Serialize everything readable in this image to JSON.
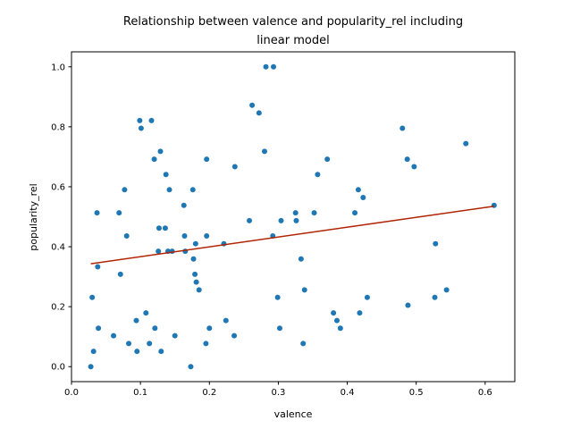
{
  "chart_data": {
    "type": "scatter",
    "title_lines": [
      "Relationship between valence and popularity_rel including",
      "linear model"
    ],
    "xlabel": "valence",
    "ylabel": "popularity_rel",
    "xlim": [
      0.0,
      0.643
    ],
    "ylim": [
      -0.05,
      1.05
    ],
    "xticks": [
      0.0,
      0.1,
      0.2,
      0.3,
      0.4,
      0.5,
      0.6
    ],
    "xtick_labels": [
      "0.0",
      "0.1",
      "0.2",
      "0.3",
      "0.4",
      "0.5",
      "0.6"
    ],
    "yticks": [
      0.0,
      0.2,
      0.4,
      0.6,
      0.8,
      1.0
    ],
    "ytick_labels": [
      "0.0",
      "0.2",
      "0.4",
      "0.6",
      "0.8",
      "1.0"
    ],
    "grid": false,
    "point_color": "#1f77b4",
    "line_color": "#b22400",
    "points": [
      {
        "x": 0.028,
        "y": 0.0
      },
      {
        "x": 0.03,
        "y": 0.231
      },
      {
        "x": 0.032,
        "y": 0.051
      },
      {
        "x": 0.037,
        "y": 0.513
      },
      {
        "x": 0.038,
        "y": 0.333
      },
      {
        "x": 0.039,
        "y": 0.128
      },
      {
        "x": 0.061,
        "y": 0.103
      },
      {
        "x": 0.069,
        "y": 0.513
      },
      {
        "x": 0.071,
        "y": 0.308
      },
      {
        "x": 0.077,
        "y": 0.59
      },
      {
        "x": 0.08,
        "y": 0.436
      },
      {
        "x": 0.083,
        "y": 0.077
      },
      {
        "x": 0.094,
        "y": 0.154
      },
      {
        "x": 0.095,
        "y": 0.051
      },
      {
        "x": 0.099,
        "y": 0.821
      },
      {
        "x": 0.101,
        "y": 0.795
      },
      {
        "x": 0.108,
        "y": 0.179
      },
      {
        "x": 0.113,
        "y": 0.077
      },
      {
        "x": 0.116,
        "y": 0.821
      },
      {
        "x": 0.12,
        "y": 0.692
      },
      {
        "x": 0.121,
        "y": 0.128
      },
      {
        "x": 0.126,
        "y": 0.385
      },
      {
        "x": 0.127,
        "y": 0.462
      },
      {
        "x": 0.129,
        "y": 0.718
      },
      {
        "x": 0.13,
        "y": 0.051
      },
      {
        "x": 0.136,
        "y": 0.462
      },
      {
        "x": 0.137,
        "y": 0.641
      },
      {
        "x": 0.14,
        "y": 0.385
      },
      {
        "x": 0.142,
        "y": 0.59
      },
      {
        "x": 0.146,
        "y": 0.385
      },
      {
        "x": 0.15,
        "y": 0.103
      },
      {
        "x": 0.163,
        "y": 0.538
      },
      {
        "x": 0.164,
        "y": 0.436
      },
      {
        "x": 0.165,
        "y": 0.385
      },
      {
        "x": 0.173,
        "y": 0.0
      },
      {
        "x": 0.176,
        "y": 0.59
      },
      {
        "x": 0.177,
        "y": 0.359
      },
      {
        "x": 0.179,
        "y": 0.308
      },
      {
        "x": 0.18,
        "y": 0.41
      },
      {
        "x": 0.181,
        "y": 0.282
      },
      {
        "x": 0.185,
        "y": 0.256
      },
      {
        "x": 0.195,
        "y": 0.077
      },
      {
        "x": 0.196,
        "y": 0.692
      },
      {
        "x": 0.196,
        "y": 0.436
      },
      {
        "x": 0.2,
        "y": 0.128
      },
      {
        "x": 0.221,
        "y": 0.41
      },
      {
        "x": 0.224,
        "y": 0.154
      },
      {
        "x": 0.236,
        "y": 0.103
      },
      {
        "x": 0.237,
        "y": 0.667
      },
      {
        "x": 0.258,
        "y": 0.487
      },
      {
        "x": 0.262,
        "y": 0.872
      },
      {
        "x": 0.272,
        "y": 0.846
      },
      {
        "x": 0.28,
        "y": 0.718
      },
      {
        "x": 0.282,
        "y": 1.0
      },
      {
        "x": 0.292,
        "y": 0.436
      },
      {
        "x": 0.293,
        "y": 1.0
      },
      {
        "x": 0.299,
        "y": 0.231
      },
      {
        "x": 0.302,
        "y": 0.128
      },
      {
        "x": 0.304,
        "y": 0.487
      },
      {
        "x": 0.325,
        "y": 0.513
      },
      {
        "x": 0.326,
        "y": 0.487
      },
      {
        "x": 0.333,
        "y": 0.359
      },
      {
        "x": 0.336,
        "y": 0.077
      },
      {
        "x": 0.338,
        "y": 0.256
      },
      {
        "x": 0.352,
        "y": 0.513
      },
      {
        "x": 0.357,
        "y": 0.641
      },
      {
        "x": 0.371,
        "y": 0.692
      },
      {
        "x": 0.38,
        "y": 0.179
      },
      {
        "x": 0.385,
        "y": 0.154
      },
      {
        "x": 0.39,
        "y": 0.128
      },
      {
        "x": 0.411,
        "y": 0.513
      },
      {
        "x": 0.416,
        "y": 0.59
      },
      {
        "x": 0.418,
        "y": 0.179
      },
      {
        "x": 0.423,
        "y": 0.564
      },
      {
        "x": 0.429,
        "y": 0.231
      },
      {
        "x": 0.48,
        "y": 0.795
      },
      {
        "x": 0.487,
        "y": 0.692
      },
      {
        "x": 0.488,
        "y": 0.205
      },
      {
        "x": 0.497,
        "y": 0.667
      },
      {
        "x": 0.527,
        "y": 0.231
      },
      {
        "x": 0.528,
        "y": 0.41
      },
      {
        "x": 0.544,
        "y": 0.256
      },
      {
        "x": 0.572,
        "y": 0.744
      },
      {
        "x": 0.613,
        "y": 0.538
      }
    ],
    "regression_line": {
      "x": [
        0.028,
        0.613
      ],
      "y": [
        0.343,
        0.535
      ]
    }
  }
}
